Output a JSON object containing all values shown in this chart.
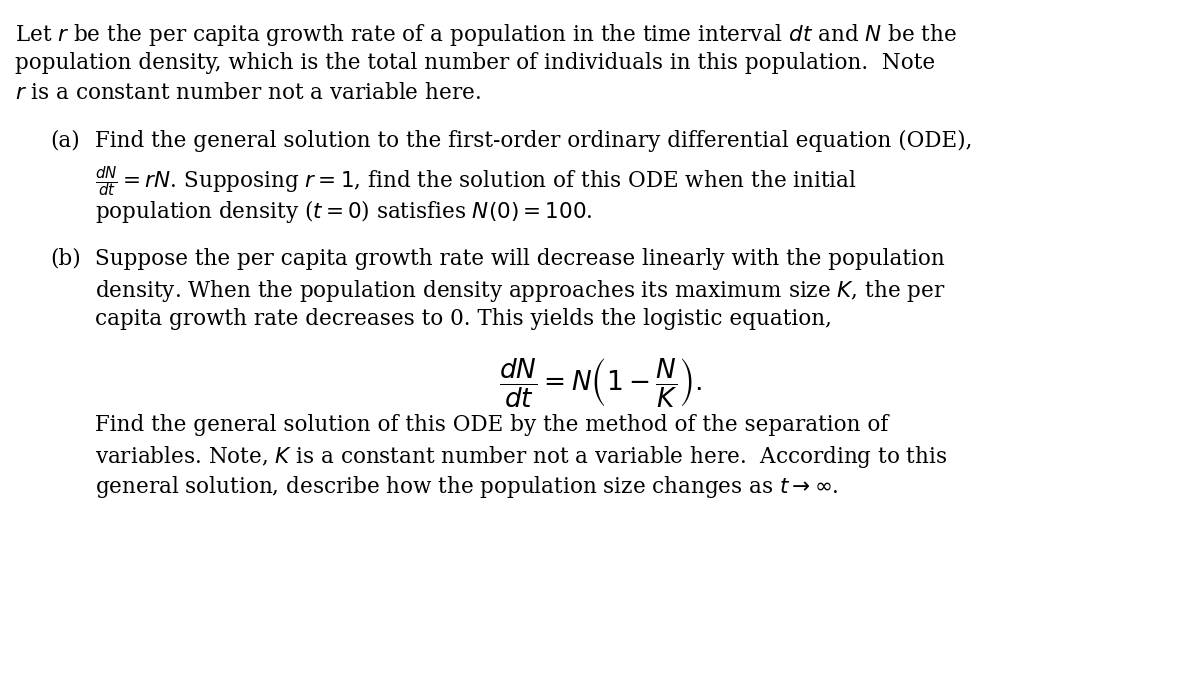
{
  "bg_color": "#ffffff",
  "text_color": "#000000",
  "figsize": [
    12.0,
    6.73
  ],
  "dpi": 100,
  "font_family": "DejaVu Serif",
  "intro_line1": "Let $r$ be the per capita growth rate of a population in the time interval $dt$ and $N$ be the",
  "intro_line2": "population density, which is the total number of individuals in this population.  Note",
  "intro_line3": "$r$ is a constant number not a variable here.",
  "part_a_label": "(a)",
  "part_a_line1": "Find the general solution to the first-order ordinary differential equation (ODE),",
  "part_a_line2": "$\\frac{dN}{dt} = rN$. Supposing $r = 1$, find the solution of this ODE when the initial",
  "part_a_line3": "population density ($t = 0$) satisfies $N(0) = 100$.",
  "part_b_label": "(b)",
  "part_b_line1": "Suppose the per capita growth rate will decrease linearly with the population",
  "part_b_line2": "density. When the population density approaches its maximum size $K$, the per",
  "part_b_line3": "capita growth rate decreases to 0. This yields the logistic equation,",
  "equation": "$\\dfrac{dN}{dt} = N\\left(1 - \\dfrac{N}{K}\\right).$",
  "part_b_line4": "Find the general solution of this ODE by the method of the separation of",
  "part_b_line5": "variables. Note, $K$ is a constant number not a variable here.  According to this",
  "part_b_line6": "general solution, describe how the population size changes as $t \\to \\infty$.",
  "main_fontsize": 15.5,
  "eq_fontsize": 19
}
